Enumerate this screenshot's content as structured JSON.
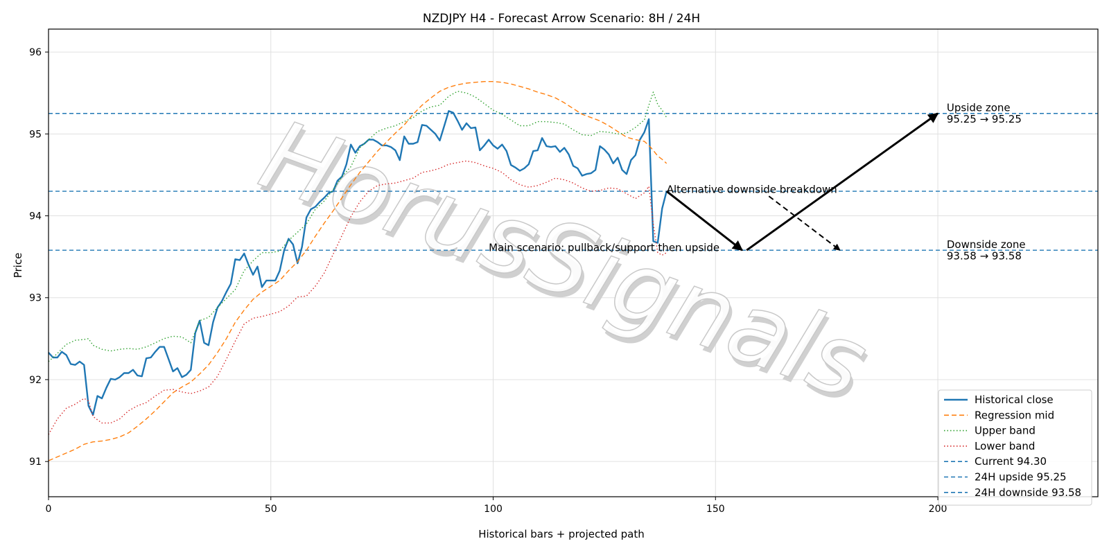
{
  "chart_data": {
    "type": "line",
    "title": "NZDJPY H4 - Forecast Arrow Scenario: 8H / 24H",
    "xlabel": "Historical bars + projected path",
    "ylabel": "Price",
    "xlim": [
      0,
      236
    ],
    "ylim": [
      90.57,
      96.28
    ],
    "x_ticks": [
      0,
      50,
      100,
      150,
      200
    ],
    "y_ticks": [
      91,
      92,
      93,
      94,
      95,
      96
    ],
    "grid": true,
    "legend_position": "lower-right",
    "watermark": "HorusSignals",
    "series": [
      {
        "name": "Historical close",
        "style": "solid",
        "color": "#1f77b4",
        "x_start": 0,
        "values": [
          92.33,
          92.27,
          92.27,
          92.34,
          92.3,
          92.19,
          92.18,
          92.22,
          92.18,
          91.68,
          91.57,
          91.8,
          91.77,
          91.9,
          92.01,
          92.0,
          92.03,
          92.08,
          92.08,
          92.12,
          92.05,
          92.04,
          92.26,
          92.27,
          92.34,
          92.4,
          92.4,
          92.25,
          92.1,
          92.14,
          92.03,
          92.06,
          92.12,
          92.57,
          92.72,
          92.45,
          92.42,
          92.7,
          92.88,
          92.96,
          93.07,
          93.17,
          93.47,
          93.46,
          93.54,
          93.4,
          93.28,
          93.38,
          93.13,
          93.21,
          93.21,
          93.21,
          93.33,
          93.58,
          93.72,
          93.65,
          93.42,
          93.62,
          93.98,
          94.08,
          94.11,
          94.17,
          94.22,
          94.28,
          94.3,
          94.43,
          94.48,
          94.63,
          94.87,
          94.77,
          94.85,
          94.88,
          94.93,
          94.93,
          94.9,
          94.86,
          94.86,
          94.84,
          94.8,
          94.68,
          94.97,
          94.88,
          94.88,
          94.9,
          95.11,
          95.1,
          95.05,
          95.0,
          94.92,
          95.1,
          95.28,
          95.26,
          95.16,
          95.05,
          95.13,
          95.07,
          95.08,
          94.8,
          94.86,
          94.93,
          94.86,
          94.82,
          94.87,
          94.79,
          94.62,
          94.59,
          94.55,
          94.58,
          94.63,
          94.79,
          94.8,
          94.95,
          94.85,
          94.84,
          94.85,
          94.78,
          94.83,
          94.75,
          94.61,
          94.58,
          94.49,
          94.51,
          94.52,
          94.56,
          94.85,
          94.81,
          94.75,
          94.64,
          94.71,
          94.56,
          94.51,
          94.68,
          94.74,
          94.93,
          95.02,
          95.18,
          93.69,
          93.67,
          94.09,
          94.3
        ]
      },
      {
        "name": "Regression mid",
        "style": "dashed",
        "color": "#ff7f0e",
        "x": [
          0,
          3,
          6,
          8,
          10,
          12,
          14,
          16,
          18,
          20,
          22,
          24,
          26,
          28,
          30,
          32,
          34,
          36,
          38,
          40,
          42,
          44,
          46,
          48,
          50,
          52,
          54,
          56,
          58,
          60,
          62,
          64,
          66,
          68,
          70,
          72,
          74,
          76,
          78,
          80,
          82,
          84,
          86,
          88,
          90,
          92,
          94,
          96,
          98,
          100,
          102,
          104,
          106,
          108,
          110,
          112,
          114,
          116,
          118,
          120,
          122,
          124,
          126,
          128,
          130,
          132,
          134,
          135,
          136,
          137,
          138,
          139
        ],
        "values": [
          91.01,
          91.08,
          91.15,
          91.21,
          91.24,
          91.25,
          91.27,
          91.3,
          91.35,
          91.43,
          91.52,
          91.62,
          91.73,
          91.84,
          91.91,
          91.97,
          92.07,
          92.18,
          92.33,
          92.5,
          92.7,
          92.85,
          92.98,
          93.07,
          93.14,
          93.21,
          93.33,
          93.44,
          93.58,
          93.75,
          93.91,
          94.06,
          94.22,
          94.38,
          94.53,
          94.66,
          94.79,
          94.9,
          95.01,
          95.11,
          95.24,
          95.35,
          95.44,
          95.52,
          95.57,
          95.6,
          95.62,
          95.63,
          95.64,
          95.64,
          95.63,
          95.61,
          95.58,
          95.55,
          95.51,
          95.48,
          95.44,
          95.38,
          95.31,
          95.24,
          95.2,
          95.16,
          95.1,
          95.03,
          94.96,
          94.93,
          94.91,
          94.86,
          94.8,
          94.73,
          94.69,
          94.64
        ]
      },
      {
        "name": "Upper band",
        "style": "dotted",
        "color": "#2ca02c",
        "x": [
          0,
          2,
          4,
          6,
          8,
          9,
          10,
          12,
          14,
          16,
          18,
          20,
          22,
          24,
          26,
          28,
          30,
          32,
          34,
          36,
          38,
          40,
          42,
          44,
          46,
          48,
          50,
          52,
          54,
          56,
          58,
          60,
          62,
          64,
          66,
          68,
          70,
          72,
          74,
          76,
          78,
          80,
          82,
          84,
          86,
          88,
          90,
          92,
          94,
          96,
          98,
          100,
          102,
          104,
          106,
          108,
          110,
          112,
          114,
          116,
          118,
          120,
          122,
          124,
          126,
          128,
          130,
          132,
          134,
          135,
          136,
          137,
          138,
          139
        ],
        "values": [
          92.22,
          92.32,
          92.43,
          92.48,
          92.49,
          92.5,
          92.42,
          92.37,
          92.35,
          92.37,
          92.38,
          92.37,
          92.4,
          92.45,
          92.5,
          92.53,
          92.52,
          92.45,
          92.72,
          92.76,
          92.88,
          92.99,
          93.1,
          93.33,
          93.45,
          93.55,
          93.55,
          93.57,
          93.7,
          93.8,
          93.9,
          94.08,
          94.18,
          94.32,
          94.48,
          94.6,
          94.83,
          94.93,
          95.03,
          95.07,
          95.1,
          95.15,
          95.2,
          95.28,
          95.33,
          95.35,
          95.46,
          95.52,
          95.5,
          95.45,
          95.37,
          95.29,
          95.24,
          95.17,
          95.1,
          95.1,
          95.15,
          95.15,
          95.14,
          95.12,
          95.05,
          94.99,
          94.98,
          95.03,
          95.02,
          95.0,
          95.01,
          95.08,
          95.17,
          95.35,
          95.51,
          95.36,
          95.29,
          95.2
        ]
      },
      {
        "name": "Lower band",
        "style": "dotted",
        "color": "#d62728",
        "x": [
          0,
          2,
          4,
          6,
          8,
          9,
          10,
          12,
          14,
          16,
          18,
          20,
          22,
          24,
          26,
          28,
          30,
          32,
          34,
          36,
          38,
          40,
          42,
          44,
          46,
          48,
          50,
          52,
          54,
          56,
          58,
          60,
          62,
          64,
          66,
          68,
          70,
          72,
          74,
          76,
          78,
          80,
          82,
          84,
          86,
          88,
          90,
          92,
          94,
          96,
          98,
          100,
          102,
          104,
          106,
          108,
          110,
          112,
          114,
          116,
          118,
          120,
          122,
          124,
          126,
          128,
          130,
          132,
          134,
          135,
          136,
          137,
          138,
          139
        ],
        "values": [
          91.33,
          91.52,
          91.65,
          91.7,
          91.77,
          91.74,
          91.55,
          91.47,
          91.47,
          91.52,
          91.62,
          91.68,
          91.72,
          91.8,
          91.87,
          91.88,
          91.85,
          91.83,
          91.86,
          91.91,
          92.04,
          92.25,
          92.47,
          92.68,
          92.75,
          92.77,
          92.8,
          92.83,
          92.9,
          93.01,
          93.02,
          93.14,
          93.3,
          93.53,
          93.76,
          93.99,
          94.17,
          94.3,
          94.37,
          94.39,
          94.4,
          94.43,
          94.46,
          94.53,
          94.55,
          94.58,
          94.63,
          94.65,
          94.67,
          94.65,
          94.61,
          94.58,
          94.53,
          94.44,
          94.38,
          94.35,
          94.37,
          94.41,
          94.46,
          94.44,
          94.4,
          94.34,
          94.3,
          94.31,
          94.34,
          94.33,
          94.27,
          94.21,
          94.28,
          94.36,
          93.9,
          93.55,
          93.52,
          93.55
        ]
      },
      {
        "name": "Current 94.30",
        "style": "dashed",
        "color": "#1f77b4",
        "hline": 94.3
      },
      {
        "name": "24H upside 95.25",
        "style": "dashed",
        "color": "#1f77b4",
        "hline": 95.25
      },
      {
        "name": "24H downside 93.58",
        "style": "dashed",
        "color": "#1f77b4",
        "hline": 93.58
      }
    ],
    "arrows": [
      {
        "from": [
          139,
          94.3
        ],
        "to": [
          156,
          93.58
        ],
        "style": "solid"
      },
      {
        "from": [
          157,
          93.58
        ],
        "to": [
          200,
          95.25
        ],
        "style": "solid"
      },
      {
        "from": [
          162,
          94.24
        ],
        "to": [
          178,
          93.58
        ],
        "style": "dashed"
      }
    ],
    "annotations": [
      {
        "text": "Upside zone",
        "x": 202,
        "y": 95.32
      },
      {
        "text": "95.25 → 95.25",
        "x": 202,
        "y": 95.18
      },
      {
        "text": "Downside zone",
        "x": 202,
        "y": 93.65
      },
      {
        "text": "93.58 → 93.58",
        "x": 202,
        "y": 93.51
      },
      {
        "text": "Alternative downside breakdown",
        "x": 139,
        "y": 94.32
      },
      {
        "text": "Main scenario: pullback/support then upside",
        "x": 99,
        "y": 93.61
      }
    ]
  }
}
